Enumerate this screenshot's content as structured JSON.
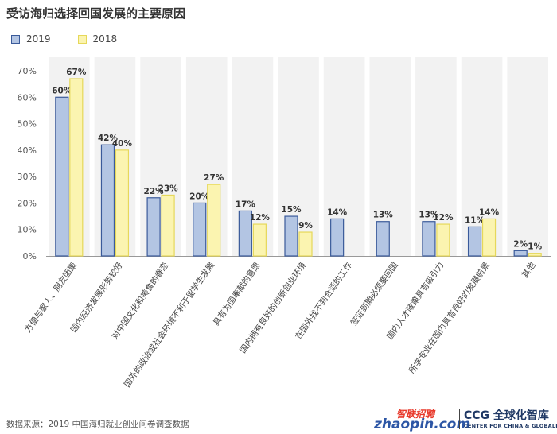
{
  "chart_data": {
    "type": "bar",
    "title": "受访海归选择回国发展的主要原因",
    "categories": [
      "方便与家人、朋友团聚",
      "国内经济发展形势较好",
      "对中国文化和美食的眷恋",
      "国外的政治或社会环境不利于留学生发展",
      "具有为国奉献的意愿",
      "国内拥有良好的创新创业环境",
      "在国外找不到合适的工作",
      "签证到期必须要回国",
      "国内人才政策具有吸引力",
      "所学专业在国内具有良好的发展前景",
      "其他"
    ],
    "series": [
      {
        "name": "2019",
        "values": [
          60,
          42,
          22,
          20,
          17,
          15,
          14,
          13,
          13,
          11,
          2
        ],
        "labels": [
          "60%",
          "42%",
          "22%",
          "20%",
          "17%",
          "15%",
          "14%",
          "13%",
          "13%",
          "11%",
          "2%"
        ],
        "color": "#b3c5e3",
        "border": "#3a5a9a"
      },
      {
        "name": "2018",
        "values": [
          67,
          40,
          23,
          27,
          12,
          9,
          null,
          null,
          12,
          14,
          1
        ],
        "labels": [
          "67%",
          "40%",
          "23%",
          "27%",
          "12%",
          "9%",
          null,
          null,
          "12%",
          "14%",
          "1%"
        ],
        "color": "#fbf4b0",
        "border": "#e6d85a"
      }
    ],
    "yticks": [
      "0%",
      "10%",
      "20%",
      "30%",
      "40%",
      "50%",
      "60%",
      "70%"
    ],
    "ylim": [
      0,
      70
    ],
    "legend": "top-left",
    "band_color": "#f2f2f2"
  },
  "footer": {
    "source": "数据来源：2019 中国海归就业创业问卷调查数据",
    "logo_zhaopin_cn": "智联招聘",
    "logo_zhaopin_en": "zhaopin.com",
    "logo_ccg_main": "CCG 全球化智库",
    "logo_ccg_sub": "CENTER FOR CHINA & GLOBALIZATION"
  }
}
